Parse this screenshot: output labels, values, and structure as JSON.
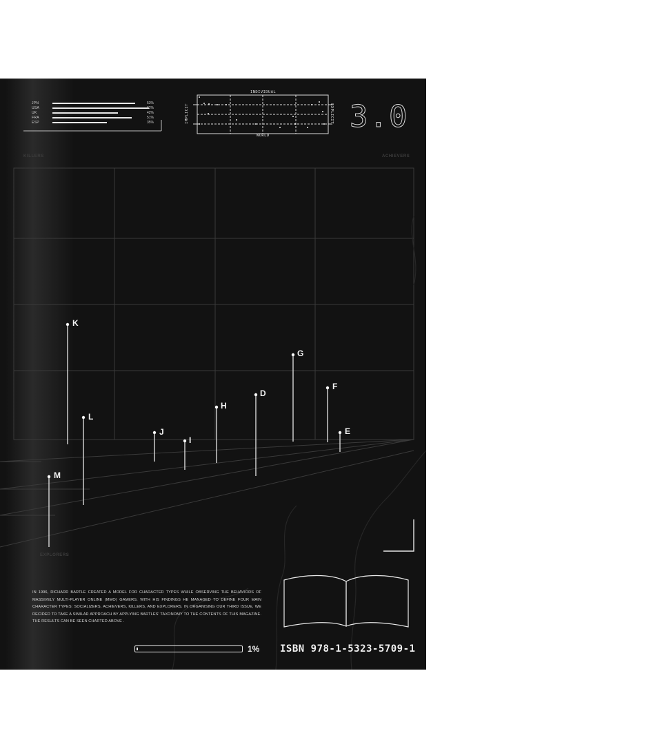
{
  "languages": [
    {
      "code": "JPN",
      "value": 53,
      "label": "53%"
    },
    {
      "code": "USA",
      "value": 62,
      "label": "62%"
    },
    {
      "code": "UK",
      "value": 42,
      "label": "42%"
    },
    {
      "code": "FRA",
      "value": 51,
      "label": "51%"
    },
    {
      "code": "ESP",
      "value": 35,
      "label": "35%"
    }
  ],
  "mini_chart": {
    "top": "INDIVIDUAL",
    "bottom": "WORLD",
    "left": "IMPLICIT",
    "right": "EXPLICIT"
  },
  "version": "3.0",
  "quadrants": {
    "top_left": "KILLERS",
    "top_right": "ACHIEVERS",
    "bottom_left": "EXPLORERS"
  },
  "markers": [
    "K",
    "L",
    "M",
    "J",
    "I",
    "H",
    "D",
    "G",
    "F",
    "E"
  ],
  "paragraph": "IN 1996, RICHARD BARTLE CREATED A MODEL FOR CHARACTER TYPES WHILE OBSERVING THE BEHAVIORS OF MASSIVELY MULTI-PLAYER ONLINE (MMO) GAMERS. WITH HIS FINDINGS HE MANAGED TO DEFINE FOUR MAIN CHARACTER TYPES: SOCIALIZERS, ACHIEVERS, KILLERS, AND EXPLORERS. IN ORGANISING OUR THIRD ISSUE, WE DECIDED TO TAKE A SIMILAR APPROACH BY APPLYING BARTLES' TAXONOMY TO THE CONTENTS OF THIS MAGAZINE. THE RESULTS CAN BE SEEN CHARTED ABOVE .",
  "progress": {
    "value": 1,
    "label": "1%"
  },
  "isbn": "ISBN 978-1-5323-5709-1",
  "icon": "open-book-icon",
  "colors": {
    "background": "#121212",
    "ink": "#e8e8e8",
    "grid": "#3a3a3a"
  }
}
